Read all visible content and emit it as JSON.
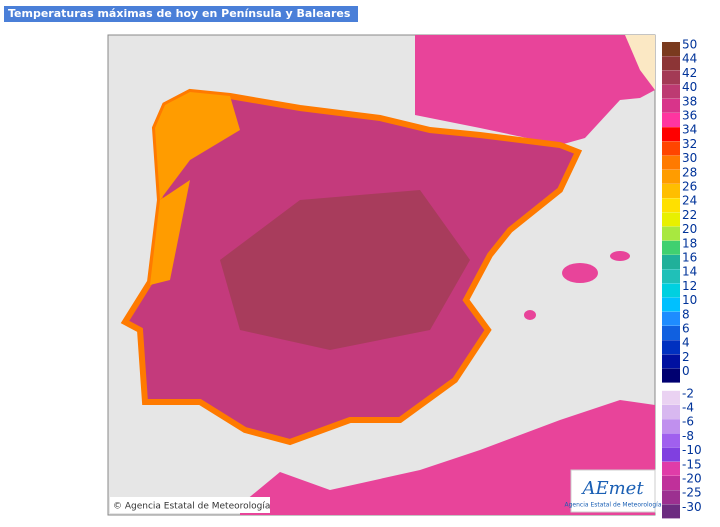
{
  "header": {
    "title": "Temperaturas máximas de hoy en Península y Baleares"
  },
  "map": {
    "copyright": "© Agencia Estatal de Meteorología",
    "logo": {
      "name": "AEmet",
      "subtitle": "Agencia Estatal de Meteorología"
    }
  },
  "legend": {
    "items": [
      {
        "label": 50,
        "color": "#7a3a1e"
      },
      {
        "label": 44,
        "color": "#8c3536"
      },
      {
        "label": 42,
        "color": "#a33a55"
      },
      {
        "label": 40,
        "color": "#bd3a72"
      },
      {
        "label": 38,
        "color": "#d8348a"
      },
      {
        "label": 36,
        "color": "#ff35a0"
      },
      {
        "label": 34,
        "color": "#ff0000"
      },
      {
        "label": 32,
        "color": "#ff4500"
      },
      {
        "label": 30,
        "color": "#ff7a00"
      },
      {
        "label": 28,
        "color": "#ff9c00"
      },
      {
        "label": 26,
        "color": "#ffbe00"
      },
      {
        "label": 24,
        "color": "#ffe000"
      },
      {
        "label": 22,
        "color": "#e8f000"
      },
      {
        "label": 20,
        "color": "#a8e840"
      },
      {
        "label": 18,
        "color": "#40d070"
      },
      {
        "label": 16,
        "color": "#20b09a"
      },
      {
        "label": 14,
        "color": "#20c0b8"
      },
      {
        "label": 12,
        "color": "#00d0e0"
      },
      {
        "label": 10,
        "color": "#00c0ff"
      },
      {
        "label": 8,
        "color": "#1e8cff"
      },
      {
        "label": 6,
        "color": "#1060e0"
      },
      {
        "label": 4,
        "color": "#0030c0"
      },
      {
        "label": 2,
        "color": "#0010a0"
      },
      {
        "label": 0,
        "color": "#000070"
      },
      {
        "label": -2,
        "color": "#ead2f2"
      },
      {
        "label": -4,
        "color": "#d8b8f0"
      },
      {
        "label": -6,
        "color": "#c090ee"
      },
      {
        "label": -8,
        "color": "#a060ee"
      },
      {
        "label": -10,
        "color": "#8040e0"
      },
      {
        "label": -15,
        "color": "#e03ca8"
      },
      {
        "label": -20,
        "color": "#c0309a"
      },
      {
        "label": -25,
        "color": "#9c3090"
      },
      {
        "label": -30,
        "color": "#6c2c80"
      }
    ]
  }
}
